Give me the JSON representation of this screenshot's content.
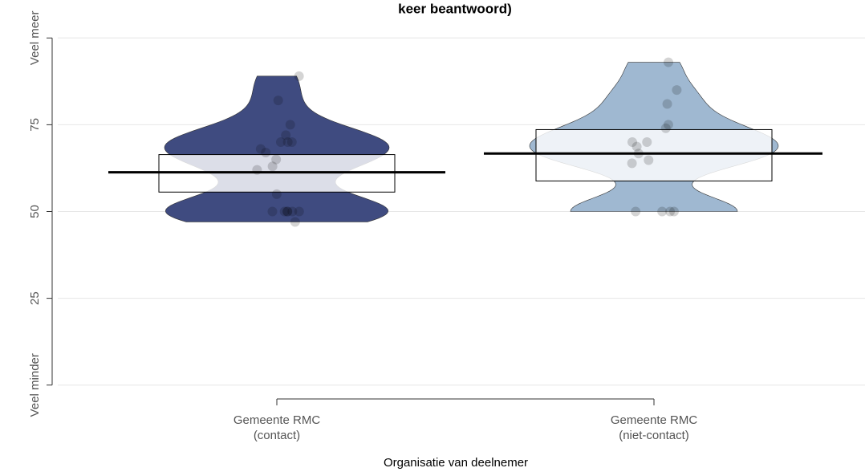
{
  "chart_data": {
    "type": "pirate",
    "title": "keer beantwoord)",
    "x_label": "Organisatie van deelnemer",
    "categories": [
      [
        "Gemeente RMC",
        "(contact)"
      ],
      [
        "Gemeente RMC",
        "(niet-contact)"
      ]
    ],
    "ylim": [
      -4,
      104
    ],
    "yticks": [
      {
        "value": 0,
        "label": "Veel minder"
      },
      25,
      50,
      75,
      {
        "value": 100,
        "label": "Veel meer"
      }
    ],
    "grid": true,
    "series": [
      {
        "color": "#3f4b80",
        "mean": 61.3,
        "ci": [
          55.6,
          66.4
        ],
        "points": [
          89,
          82,
          75,
          72,
          70,
          70,
          70,
          68,
          67,
          65,
          63,
          62,
          55,
          50,
          50,
          50,
          50,
          50,
          50,
          47
        ]
      },
      {
        "color": "#9fb8d1",
        "mean": 66.7,
        "ci": [
          58.8,
          73.6
        ],
        "points": [
          93,
          85,
          81,
          75,
          74,
          70,
          70,
          68.7,
          66.7,
          64.8,
          63.9,
          50,
          50,
          50,
          50
        ]
      }
    ]
  }
}
